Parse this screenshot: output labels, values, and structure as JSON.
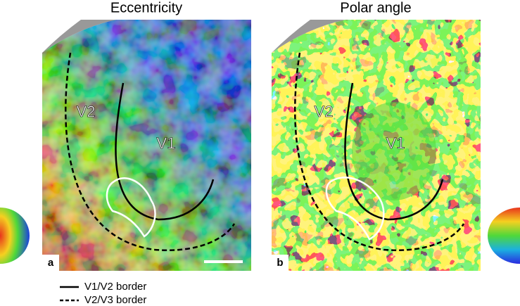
{
  "panels": [
    {
      "title": "Eccentricity",
      "label": "a",
      "areas": [
        "V2",
        "V1"
      ]
    },
    {
      "title": "Polar angle",
      "label": "b",
      "areas": [
        "V2",
        "V1"
      ]
    }
  ],
  "legend": [
    "V1/V2 border",
    "V2/V3 border"
  ]
}
